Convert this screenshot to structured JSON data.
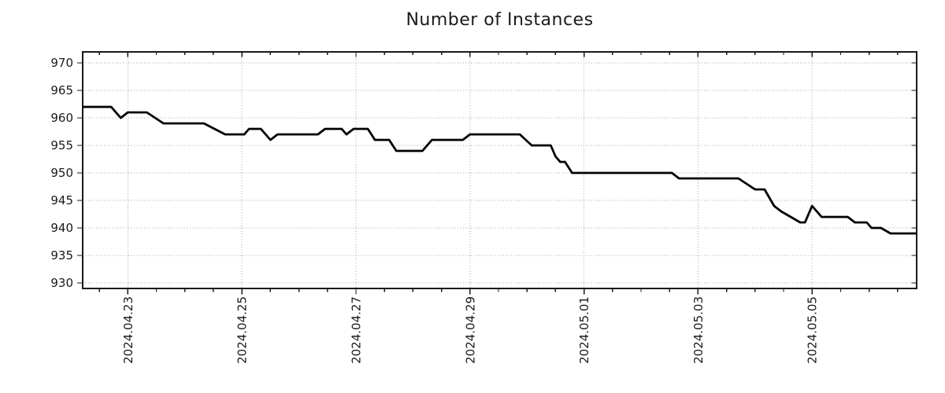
{
  "chart_data": {
    "type": "line",
    "title": "Number of Instances",
    "grid": true,
    "legend": "none",
    "line_color": "#000000",
    "grid_color": "#a6a6a6",
    "axis_color": "#1a1a1a",
    "x_axis": {
      "unit": "hours since 2024-04-22 00:00",
      "range": [
        5,
        356
      ],
      "minor_tick_every_hours": 12,
      "major_ticks": [
        {
          "hour": 24,
          "label": "2024.04.23"
        },
        {
          "hour": 72,
          "label": "2024.04.25"
        },
        {
          "hour": 120,
          "label": "2024.04.27"
        },
        {
          "hour": 168,
          "label": "2024.04.29"
        },
        {
          "hour": 216,
          "label": "2024.05.01"
        },
        {
          "hour": 264,
          "label": "2024.05.03"
        },
        {
          "hour": 312,
          "label": "2024.05.05"
        }
      ]
    },
    "y_axis": {
      "range": [
        929,
        972
      ],
      "tick_min": 930,
      "tick_max": 970,
      "tick_step": 5,
      "tick_labels": [
        "930",
        "935",
        "940",
        "945",
        "950",
        "955",
        "960",
        "965",
        "970"
      ]
    },
    "series": [
      {
        "name": "instances",
        "color": "#000000",
        "points": [
          [
            5,
            962
          ],
          [
            17,
            962
          ],
          [
            21,
            960
          ],
          [
            24,
            961
          ],
          [
            32,
            961
          ],
          [
            39,
            959
          ],
          [
            56,
            959
          ],
          [
            65,
            957
          ],
          [
            73,
            957
          ],
          [
            75,
            958
          ],
          [
            80,
            958
          ],
          [
            84,
            956
          ],
          [
            87,
            957
          ],
          [
            104,
            957
          ],
          [
            107,
            958
          ],
          [
            114,
            958
          ],
          [
            116,
            957
          ],
          [
            119,
            958
          ],
          [
            125,
            958
          ],
          [
            128,
            956
          ],
          [
            134,
            956
          ],
          [
            137,
            954
          ],
          [
            148,
            954
          ],
          [
            152,
            956
          ],
          [
            165,
            956
          ],
          [
            168,
            957
          ],
          [
            189,
            957
          ],
          [
            194,
            955
          ],
          [
            202,
            955
          ],
          [
            204,
            953
          ],
          [
            206,
            952
          ],
          [
            208,
            952
          ],
          [
            211,
            950
          ],
          [
            253,
            950
          ],
          [
            256,
            949
          ],
          [
            281,
            949
          ],
          [
            288,
            947
          ],
          [
            292,
            947
          ],
          [
            296,
            944
          ],
          [
            299,
            943
          ],
          [
            303,
            942
          ],
          [
            307,
            941
          ],
          [
            309,
            941
          ],
          [
            312,
            944
          ],
          [
            316,
            942
          ],
          [
            327,
            942
          ],
          [
            330,
            941
          ],
          [
            335,
            941
          ],
          [
            337,
            940
          ],
          [
            341,
            940
          ],
          [
            345,
            939
          ],
          [
            356,
            939
          ]
        ]
      }
    ]
  }
}
